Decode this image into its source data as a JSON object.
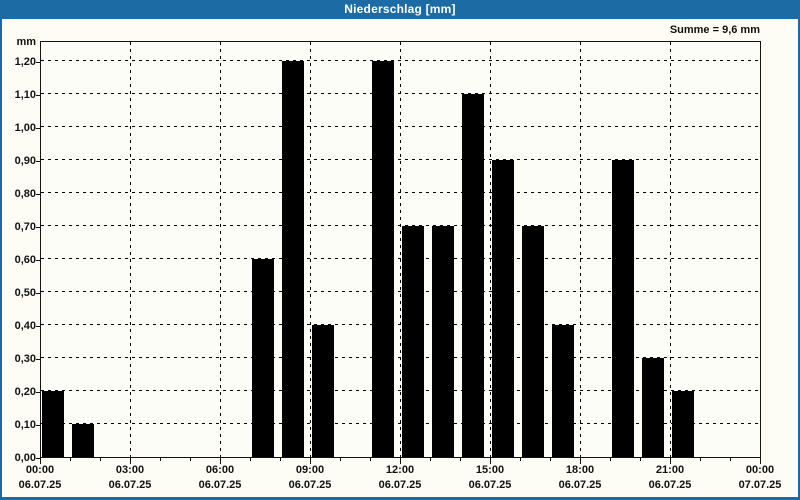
{
  "window": {
    "title": "Niederschlag [mm]",
    "summary_label": "Summe = 9,6 mm",
    "colors": {
      "titlebar": "#1c6ba4",
      "border": "#1c6ba4",
      "title_text": "#ffffff",
      "background": "#fdfdf6",
      "plot_background": "#fdfdf8",
      "bar": "#000000",
      "grid": "#000000"
    }
  },
  "chart_data": {
    "type": "bar",
    "title": "Niederschlag [mm]",
    "unit_label": "mm",
    "ylabel": "mm",
    "ylim": [
      0,
      1.2
    ],
    "ytick_step": 0.1,
    "ytick_labels": [
      "0,00",
      "0,10",
      "0,20",
      "0,30",
      "0,40",
      "0,50",
      "0,60",
      "0,70",
      "0,80",
      "0,90",
      "1,00",
      "1,10",
      "1,20"
    ],
    "grid": "dashed",
    "legend": "none",
    "sum_annotation": "Summe = 9,6 mm",
    "x_axis": {
      "hours_total": 24,
      "minor_tick_every_hours": 1,
      "major_ticks": [
        {
          "hour": 0,
          "time": "00:00",
          "date": "06.07.25"
        },
        {
          "hour": 3,
          "time": "03:00",
          "date": "06.07.25"
        },
        {
          "hour": 6,
          "time": "06:00",
          "date": "06.07.25"
        },
        {
          "hour": 9,
          "time": "09:00",
          "date": "06.07.25"
        },
        {
          "hour": 12,
          "time": "12:00",
          "date": "06.07.25"
        },
        {
          "hour": 15,
          "time": "15:00",
          "date": "06.07.25"
        },
        {
          "hour": 18,
          "time": "18:00",
          "date": "06.07.25"
        },
        {
          "hour": 21,
          "time": "21:00",
          "date": "06.07.25"
        },
        {
          "hour": 24,
          "time": "00:00",
          "date": "07.07.25"
        }
      ]
    },
    "series": [
      {
        "name": "Niederschlag",
        "unit": "mm",
        "values_by_hour": [
          0.2,
          0.1,
          0,
          0,
          0,
          0,
          0,
          0.6,
          1.2,
          0.4,
          0,
          1.2,
          0.7,
          0.7,
          1.1,
          0.9,
          0.7,
          0.4,
          0,
          0.9,
          0.3,
          0.2,
          0,
          0
        ]
      }
    ]
  }
}
